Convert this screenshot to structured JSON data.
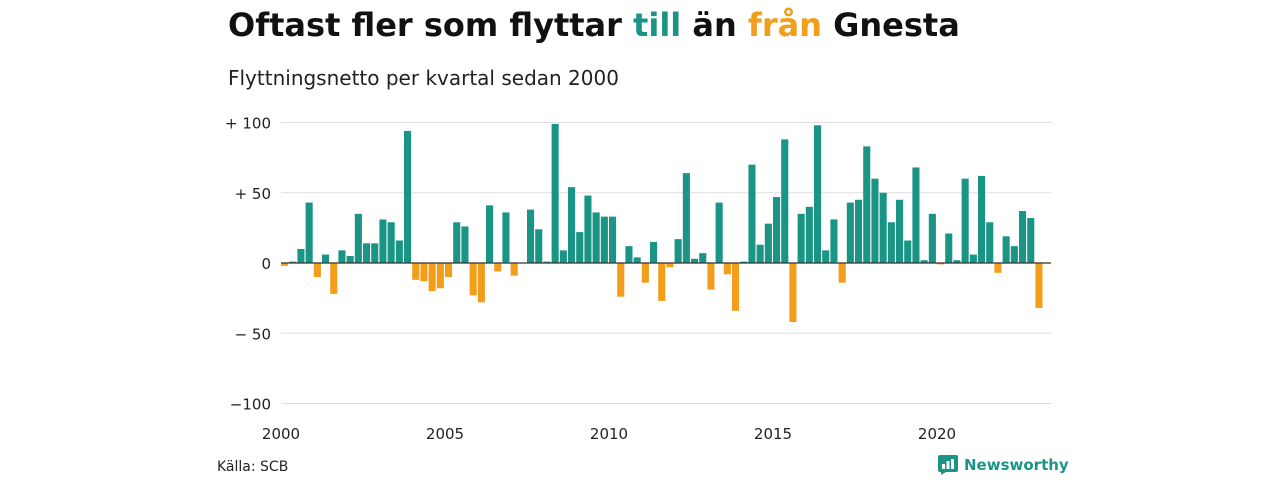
{
  "header": {
    "title_part1": "Oftast fler som flyttar ",
    "title_in": "till",
    "title_mid": " än ",
    "title_out": "från",
    "title_part2": " Gnesta",
    "subtitle": "Flyttningsnetto per kvartal sedan 2000"
  },
  "footer": {
    "source": "Källa: SCB",
    "brand": "Newsworthy",
    "brand_icon": "newsworthy-logo-icon"
  },
  "colors": {
    "positive": "#1a9585",
    "negative": "#f29e1b",
    "grid": "#dddddd",
    "zero_line": "#333333"
  },
  "chart_data": {
    "type": "bar",
    "title": "",
    "xlabel": "",
    "ylabel": "",
    "ylim": [
      -100,
      100
    ],
    "y_ticks": [
      {
        "value": 100,
        "label": "+ 100"
      },
      {
        "value": 50,
        "label": "+  50"
      },
      {
        "value": 0,
        "label": "0"
      },
      {
        "value": -50,
        "label": "− 50"
      },
      {
        "value": -100,
        "label": "−100"
      }
    ],
    "x_ticks": [
      {
        "year": 2000,
        "label": "2000"
      },
      {
        "year": 2005,
        "label": "2005"
      },
      {
        "year": 2010,
        "label": "2010"
      },
      {
        "year": 2015,
        "label": "2015"
      },
      {
        "year": 2020,
        "label": "2020"
      }
    ],
    "start_year": 2000,
    "period": "quarter",
    "values": [
      -2,
      1,
      10,
      43,
      -10,
      6,
      -22,
      9,
      5,
      35,
      14,
      14,
      31,
      29,
      16,
      94,
      -12,
      -13,
      -20,
      -18,
      -10,
      29,
      26,
      -23,
      -28,
      41,
      -6,
      36,
      -9,
      0,
      38,
      24,
      1,
      99,
      9,
      54,
      22,
      48,
      36,
      33,
      33,
      -24,
      12,
      4,
      -14,
      15,
      -27,
      -3,
      17,
      64,
      3,
      7,
      -19,
      43,
      -8,
      -34,
      1,
      70,
      13,
      28,
      47,
      88,
      -42,
      35,
      40,
      98,
      9,
      31,
      -14,
      43,
      45,
      83,
      60,
      50,
      29,
      45,
      16,
      68,
      2,
      35,
      -1,
      21,
      2,
      60,
      6,
      62,
      29,
      -7,
      19,
      12,
      37,
      32,
      -32
    ]
  }
}
